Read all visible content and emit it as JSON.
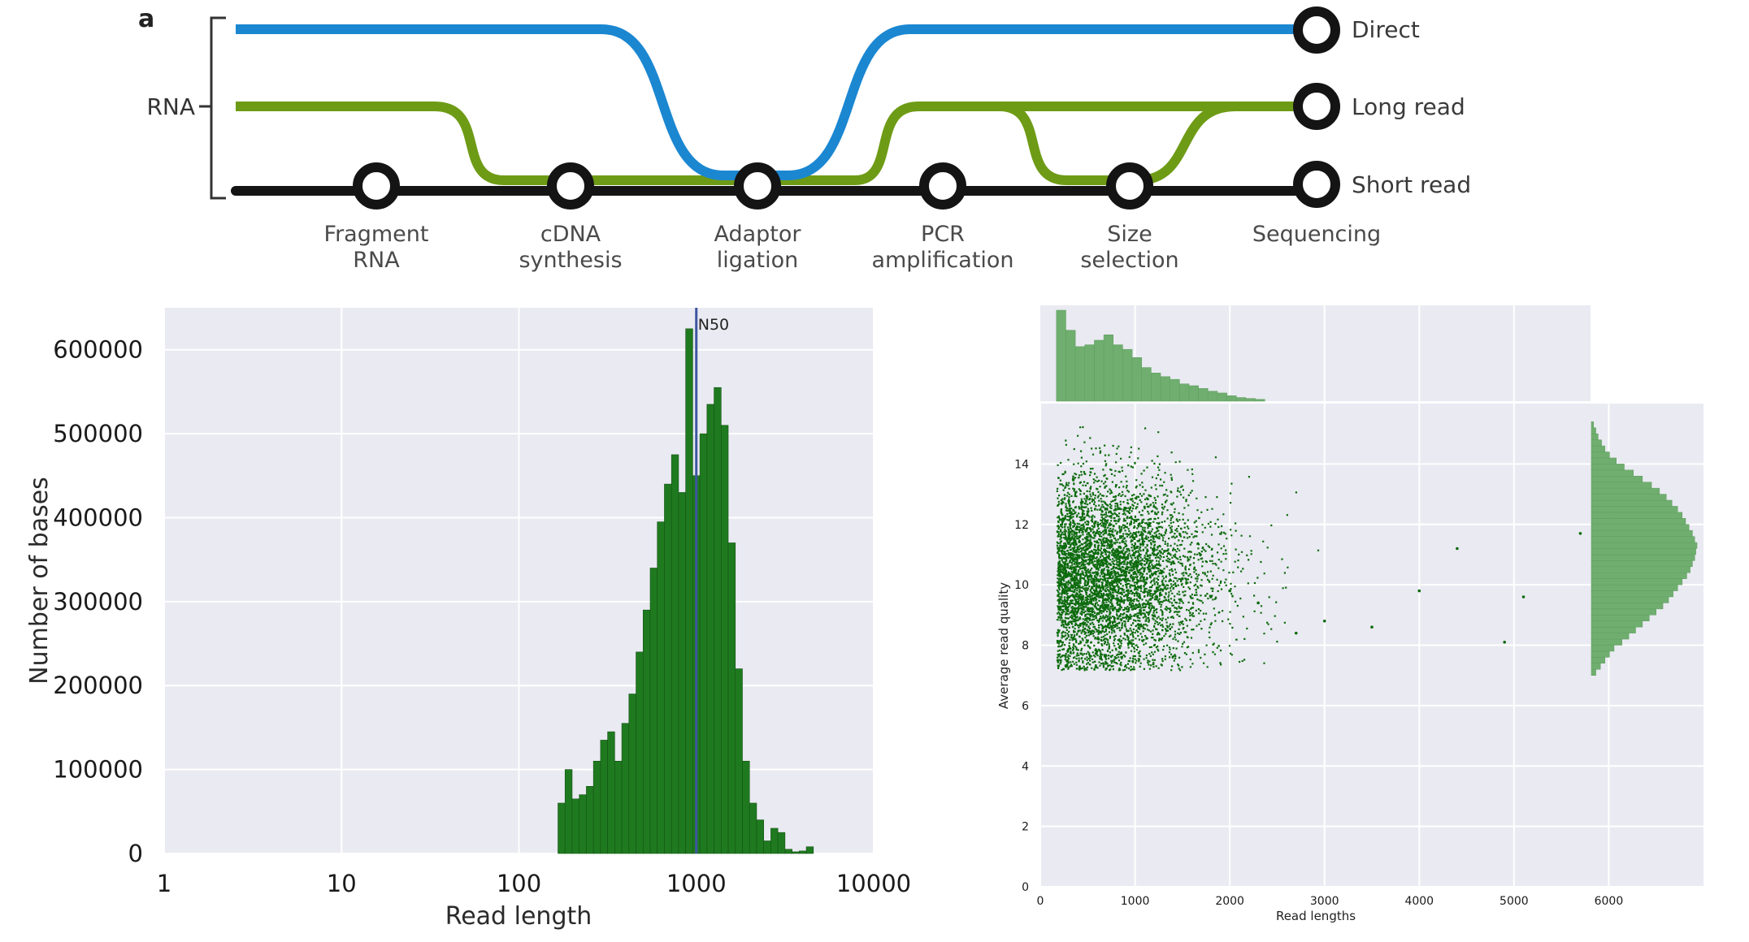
{
  "panel_letter": "a",
  "workflow": {
    "rna_label": "RNA",
    "stages": [
      "Fragment\nRNA",
      "cDNA\nsynthesis",
      "Adaptor\nligation",
      "PCR\namplification",
      "Size\nselection",
      "Sequencing"
    ],
    "routes": [
      {
        "name": "Direct",
        "color": "#1b87d1"
      },
      {
        "name": "Long read",
        "color": "#6e9b15"
      },
      {
        "name": "Short read",
        "color": "#141414"
      }
    ]
  },
  "chart_data": [
    {
      "type": "bar",
      "subtype": "histogram",
      "xscale": "log",
      "xlabel": "Read length",
      "ylabel": "Number of bases",
      "xlim": [
        1,
        10000
      ],
      "ylim": [
        0,
        650000
      ],
      "xticks": [
        1,
        10,
        100,
        1000,
        10000
      ],
      "yticks": [
        0,
        100000,
        200000,
        300000,
        400000,
        500000,
        600000
      ],
      "grid": true,
      "bar_color": "#1f7a1f",
      "bins_log10": [
        2.22,
        2.26,
        2.3,
        2.34,
        2.38,
        2.42,
        2.46,
        2.5,
        2.54,
        2.58,
        2.62,
        2.66,
        2.7,
        2.74,
        2.78,
        2.82,
        2.86,
        2.9,
        2.94,
        2.98,
        3.02,
        3.06,
        3.1,
        3.14,
        3.18,
        3.22,
        3.26,
        3.3,
        3.34,
        3.38,
        3.42,
        3.46,
        3.5,
        3.54,
        3.58,
        3.62,
        3.66,
        3.7,
        3.74
      ],
      "values": [
        60000,
        100000,
        65000,
        70000,
        80000,
        110000,
        135000,
        145000,
        110000,
        155000,
        190000,
        240000,
        290000,
        340000,
        395000,
        440000,
        475000,
        430000,
        625000,
        450000,
        500000,
        535000,
        555000,
        510000,
        370000,
        220000,
        110000,
        60000,
        40000,
        15000,
        30000,
        25000,
        5000,
        2000,
        3000,
        8000,
        0,
        0,
        0
      ],
      "annotations": [
        {
          "label": "N50",
          "x": 1000
        }
      ],
      "annotation_color": "#3b56a0"
    },
    {
      "type": "scatter",
      "xlabel": "Read lengths",
      "ylabel": "Average read quality",
      "xlim": [
        0,
        7000
      ],
      "ylim": [
        0,
        16
      ],
      "xticks": [
        0,
        1000,
        2000,
        3000,
        4000,
        5000,
        6000
      ],
      "yticks": [
        0,
        2,
        4,
        6,
        8,
        10,
        12,
        14
      ],
      "grid": true,
      "point_color": "#0d6b0d",
      "marginal_color": "#6fae6f",
      "points_sample": [
        [
          200,
          9.5
        ],
        [
          350,
          10.8
        ],
        [
          500,
          11.2
        ],
        [
          700,
          12.1
        ],
        [
          900,
          10.4
        ],
        [
          1200,
          11.0
        ],
        [
          1500,
          10.2
        ],
        [
          1800,
          9.6
        ],
        [
          2000,
          9.8
        ],
        [
          2300,
          9.4
        ],
        [
          2700,
          8.4
        ],
        [
          3000,
          8.8
        ],
        [
          3500,
          8.6
        ],
        [
          4000,
          9.8
        ],
        [
          4400,
          11.2
        ],
        [
          4900,
          8.1
        ],
        [
          5100,
          9.6
        ],
        [
          5700,
          11.7
        ]
      ],
      "marginal_x": {
        "bin_width": 100,
        "values": [
          100,
          78,
          60,
          62,
          67,
          73,
          62,
          57,
          48,
          37,
          31,
          27,
          24,
          19,
          17,
          14,
          11,
          9,
          6,
          4,
          3,
          2
        ]
      },
      "marginal_y": {
        "bin_start": 7,
        "bin_width": 0.2,
        "values": [
          4,
          8,
          12,
          16,
          20,
          27,
          33,
          39,
          45,
          51,
          57,
          63,
          68,
          72,
          76,
          80,
          84,
          87,
          89,
          91,
          92,
          93,
          91,
          89,
          86,
          83,
          80,
          76,
          71,
          66,
          60,
          53,
          45,
          37,
          29,
          22,
          16,
          12,
          9,
          6,
          4,
          2
        ]
      }
    }
  ]
}
